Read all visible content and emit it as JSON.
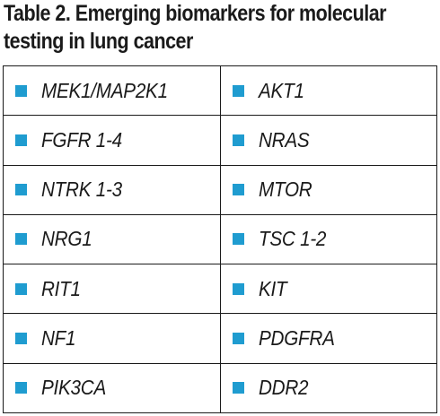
{
  "title": {
    "line1": "Table 2. Emerging biomarkers for molecular",
    "line2": "testing in lung cancer"
  },
  "bullet_color": "#1f9cd0",
  "bullet_icon": "square-bullet-icon",
  "rows": [
    {
      "left": "MEK1/MAP2K1",
      "right": "AKT1"
    },
    {
      "left": "FGFR 1-4",
      "right": "NRAS"
    },
    {
      "left": "NTRK 1-3",
      "right": "MTOR"
    },
    {
      "left": "NRG1",
      "right": "TSC 1-2"
    },
    {
      "left": "RIT1",
      "right": "KIT"
    },
    {
      "left": "NF1",
      "right": "PDGFRA"
    },
    {
      "left": "PIK3CA",
      "right": "DDR2"
    }
  ]
}
